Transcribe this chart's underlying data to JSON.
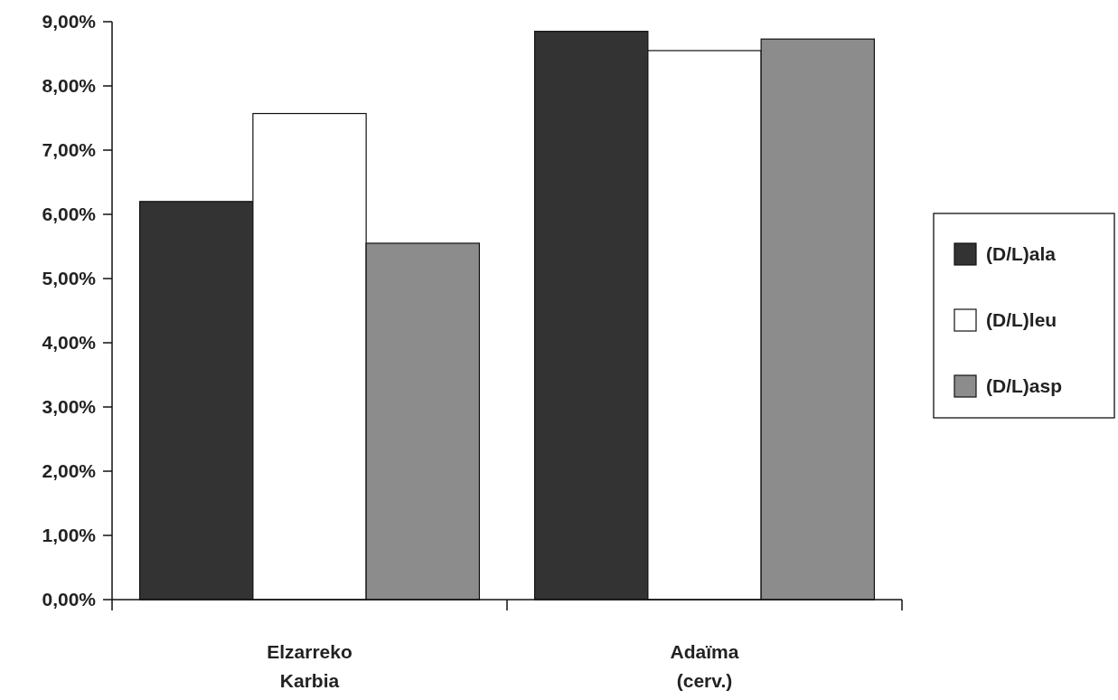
{
  "chart_data": {
    "type": "bar",
    "categories": [
      "Elzarreko Karbia",
      "Adaïma (cerv.)"
    ],
    "series": [
      {
        "name": "(D/L)ala",
        "color": "#333333",
        "values": [
          6.2,
          8.85
        ]
      },
      {
        "name": "(D/L)leu",
        "color": "#ffffff",
        "values": [
          7.57,
          8.55
        ]
      },
      {
        "name": "(D/L)asp",
        "color": "#8c8c8c",
        "values": [
          5.55,
          8.73
        ]
      }
    ],
    "ylim": [
      0,
      9
    ],
    "yticks": [
      {
        "value": 0,
        "label": "0,00%"
      },
      {
        "value": 1,
        "label": "1,00%"
      },
      {
        "value": 2,
        "label": "2,00%"
      },
      {
        "value": 3,
        "label": "3,00%"
      },
      {
        "value": 4,
        "label": "4,00%"
      },
      {
        "value": 5,
        "label": "5,00%"
      },
      {
        "value": 6,
        "label": "6,00%"
      },
      {
        "value": 7,
        "label": "7,00%"
      },
      {
        "value": 8,
        "label": "8,00%"
      },
      {
        "value": 9,
        "label": "9,00%"
      }
    ],
    "grid": false,
    "legend": "right"
  }
}
